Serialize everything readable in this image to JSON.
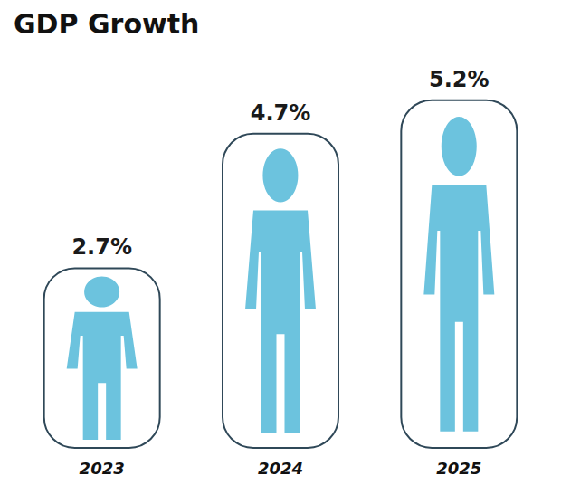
{
  "chart_data": {
    "type": "bar",
    "title": "GDP Growth",
    "categories": [
      "2023",
      "2024",
      "2025"
    ],
    "values": [
      2.7,
      4.7,
      5.2
    ],
    "value_labels": [
      "2.7%",
      "4.7%",
      "5.2%"
    ],
    "data_labels": true,
    "ylim": [
      0,
      5.6
    ],
    "tick_labels": "x",
    "grid": false,
    "color": "#2f4858"
  }
}
